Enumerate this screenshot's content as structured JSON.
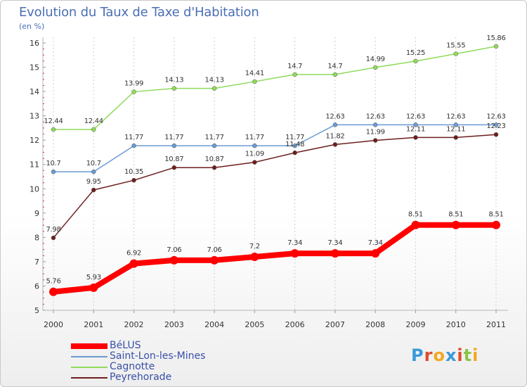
{
  "title": "Evolution du Taux de Taxe d'Habitation",
  "subtitle": "(en %)",
  "brand": {
    "text": "Proxiti",
    "colors": [
      "#3a9ad9",
      "#e04a2a",
      "#f5a623",
      "#3a9ad9",
      "#e04a2a",
      "#8bc34a",
      "#f5a623"
    ]
  },
  "chart_data": {
    "type": "line",
    "title": "Evolution du Taux de Taxe d'Habitation",
    "ylabel": "(en %)",
    "xlabel": "",
    "x": [
      "2000",
      "2001",
      "2002",
      "2003",
      "2004",
      "2005",
      "2006",
      "2007",
      "2008",
      "2009",
      "2010",
      "2011"
    ],
    "ylim": [
      5,
      16
    ],
    "yticks": [
      5,
      6,
      7,
      8,
      9,
      10,
      11,
      12,
      13,
      14,
      15,
      16
    ],
    "grid": "vertical dashed",
    "legend": "bottom-left",
    "series": [
      {
        "name": "BéLUS",
        "color": "#ff0000",
        "thick": true,
        "values": [
          5.76,
          5.93,
          6.92,
          7.06,
          7.06,
          7.2,
          7.34,
          7.34,
          7.34,
          8.51,
          8.51,
          8.51
        ],
        "labels": [
          "5.76",
          "5.93",
          "6.92",
          "7.06",
          "7.06",
          "7.2",
          "7.34",
          "7.34",
          "7.34",
          "8.51",
          "8.51",
          "8.51"
        ]
      },
      {
        "name": "Saint-Lon-les-Mines",
        "color": "#6b9bd2",
        "thick": false,
        "values": [
          10.7,
          10.7,
          11.77,
          11.77,
          11.77,
          11.77,
          11.77,
          12.63,
          12.63,
          12.63,
          12.63,
          12.63
        ],
        "labels": [
          "10.7",
          "10.7",
          "11.77",
          "11.77",
          "11.77",
          "11.77",
          "11.77",
          "12.63",
          "12.63",
          "12.63",
          "12.63",
          "12.63"
        ]
      },
      {
        "name": "Cagnotte",
        "color": "#8fdb5a",
        "thick": false,
        "values": [
          12.44,
          12.44,
          13.99,
          14.13,
          14.13,
          14.41,
          14.7,
          14.7,
          14.99,
          15.25,
          15.55,
          15.86
        ],
        "labels": [
          "12.44",
          "12.44",
          "13.99",
          "14.13",
          "14.13",
          "14.41",
          "14.7",
          "14.7",
          "14.99",
          "15.25",
          "15.55",
          "15.86"
        ]
      },
      {
        "name": "Peyrehorade",
        "color": "#6e1e1e",
        "thick": false,
        "values": [
          7.98,
          9.95,
          10.35,
          10.87,
          10.87,
          11.09,
          11.48,
          11.82,
          11.99,
          12.11,
          12.11,
          12.23
        ],
        "labels": [
          "7.98",
          "9.95",
          "10.35",
          "10.87",
          "10.87",
          "11.09",
          "11.48",
          "11.82",
          "11.99",
          "12.11",
          "12.11",
          "12.23"
        ]
      }
    ]
  }
}
